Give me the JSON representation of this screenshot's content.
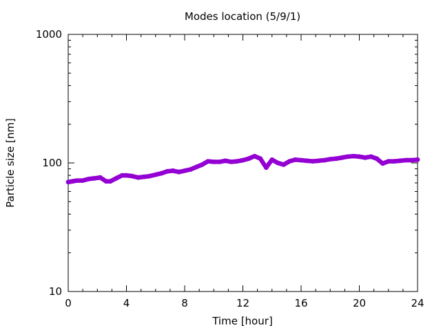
{
  "chart_data": {
    "type": "scatter",
    "title": "Modes location (5/9/1)",
    "xlabel": "Time [hour]",
    "ylabel": "Particle size [nm]",
    "xlim": [
      0,
      24
    ],
    "ylim": [
      10,
      1000
    ],
    "yscale": "log",
    "xticks": [
      0,
      4,
      8,
      12,
      16,
      20,
      24
    ],
    "xtick_labels": [
      "0",
      "4",
      "8",
      "12",
      "16",
      "20",
      "24"
    ],
    "yticks": [
      10,
      100,
      1000
    ],
    "ytick_labels": [
      "10",
      "100",
      "1000"
    ],
    "grid": false,
    "legend": "none",
    "marker_color": "#9400d3",
    "series": [
      {
        "x": [
          0.0,
          0.3,
          0.6,
          1.0,
          1.4,
          1.8,
          2.2,
          2.6,
          2.9,
          3.3,
          3.7,
          4.0,
          4.4,
          4.8,
          5.2,
          5.6,
          6.0,
          6.4,
          6.8,
          7.2,
          7.6,
          8.0,
          8.4,
          8.8,
          9.2,
          9.6,
          10.0,
          10.4,
          10.8,
          11.2,
          11.6,
          12.0,
          12.4,
          12.8,
          13.2,
          13.6,
          14.0,
          14.4,
          14.8,
          15.2,
          15.6,
          16.0,
          16.4,
          16.8,
          17.2,
          17.6,
          18.0,
          18.4,
          18.8,
          19.2,
          19.6,
          20.0,
          20.4,
          20.8,
          21.2,
          21.6,
          22.0,
          22.4,
          22.8,
          23.2,
          23.6,
          24.0
        ],
        "y": [
          71,
          72,
          73,
          73,
          75,
          76,
          77,
          72,
          72,
          76,
          80,
          80,
          79,
          77,
          78,
          79,
          81,
          83,
          86,
          87,
          85,
          87,
          89,
          93,
          97,
          103,
          102,
          102,
          104,
          102,
          103,
          105,
          108,
          113,
          108,
          92,
          106,
          100,
          97,
          103,
          106,
          105,
          104,
          103,
          104,
          105,
          107,
          108,
          110,
          112,
          113,
          112,
          110,
          112,
          108,
          99,
          103,
          103,
          104,
          105,
          105,
          106
        ]
      }
    ]
  }
}
